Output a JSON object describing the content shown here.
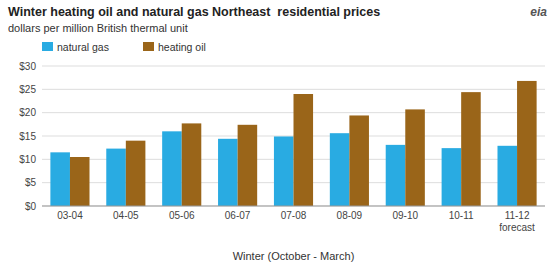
{
  "chart_data": {
    "type": "bar",
    "title": "Winter heating oil and natural gas Northeast  residential prices",
    "subtitle": "dollars per million British thermal unit",
    "x_label": "Winter (October - March)",
    "categories": [
      "03-04",
      "04-05",
      "05-06",
      "06-07",
      "07-08",
      "08-09",
      "09-10",
      "10-11",
      "11-12\nforecast"
    ],
    "series": [
      {
        "name": "natural gas",
        "color": "#29abe2",
        "values": [
          11.5,
          12.3,
          16.0,
          14.4,
          14.9,
          15.6,
          13.1,
          12.4,
          12.9
        ]
      },
      {
        "name": "heating oil",
        "color": "#9a6519",
        "values": [
          10.5,
          14.0,
          17.7,
          17.4,
          24.0,
          19.4,
          20.7,
          24.4,
          26.8
        ]
      }
    ],
    "ylim": [
      0,
      30
    ],
    "yticks": [
      {
        "value": 0,
        "label": "$0"
      },
      {
        "value": 5,
        "label": "$5"
      },
      {
        "value": 10,
        "label": "$10"
      },
      {
        "value": 15,
        "label": "$15"
      },
      {
        "value": 20,
        "label": "$20"
      },
      {
        "value": 25,
        "label": "$25"
      },
      {
        "value": 30,
        "label": "$30"
      }
    ],
    "grid": true,
    "legend": "upper left",
    "annotations": [
      {
        "text": "eia"
      }
    ]
  }
}
